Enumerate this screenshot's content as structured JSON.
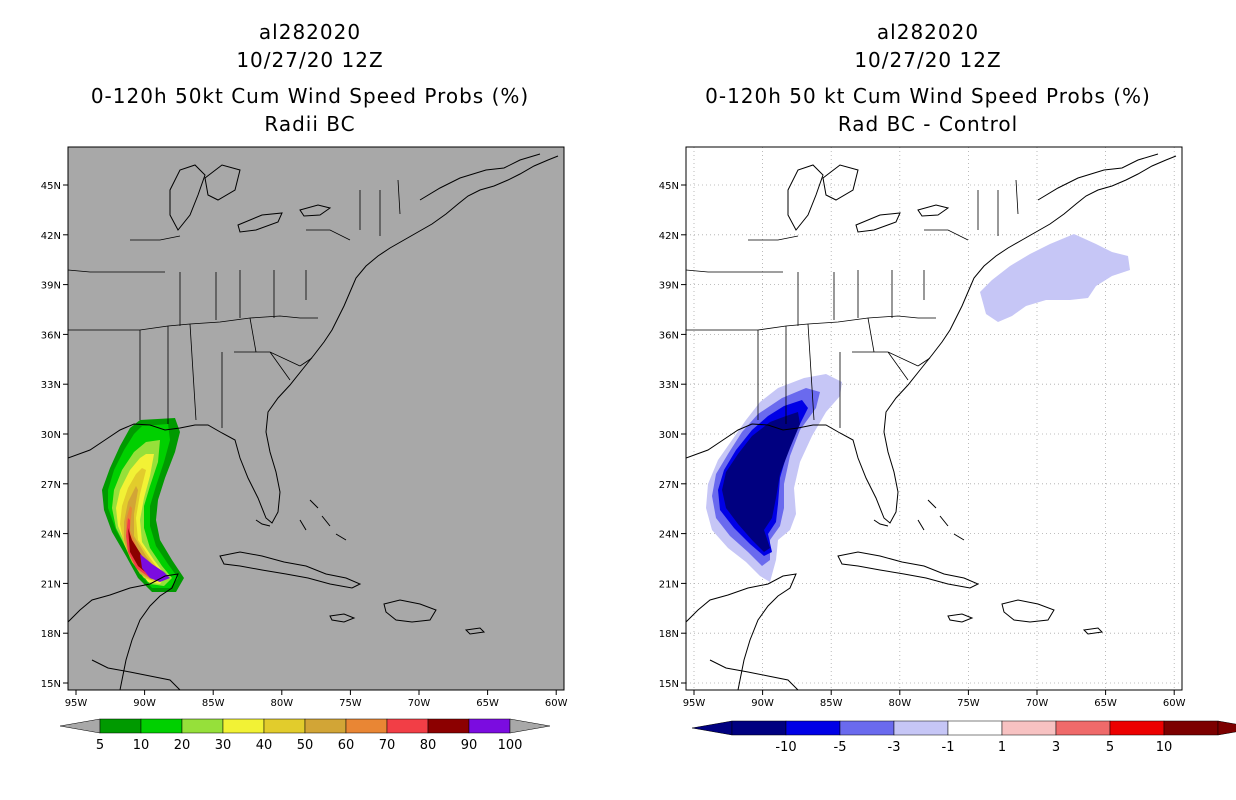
{
  "left_panel": {
    "storm_id": "al282020",
    "datetime": "10/27/20 12Z",
    "title_line1": "0-120h 50kt Cum Wind Speed Probs (%)",
    "title_line2": "Radii BC",
    "background_color": "#a8a8a8",
    "legend": {
      "colors": [
        "#009a00",
        "#00d000",
        "#96e03a",
        "#f2f235",
        "#e2cc2c",
        "#d2a536",
        "#e98634",
        "#f23e46",
        "#8c0000",
        "#7b0ce0"
      ],
      "labels": [
        "5",
        "10",
        "20",
        "30",
        "40",
        "50",
        "60",
        "70",
        "80",
        "90",
        "100"
      ]
    }
  },
  "right_panel": {
    "storm_id": "al282020",
    "datetime": "10/27/20 12Z",
    "title_line1": "0-120h 50 kt Cum Wind Speed Probs (%)",
    "title_line2": "Rad BC - Control",
    "background_color": "#ffffff",
    "legend": {
      "colors": [
        "#000080",
        "#0000e6",
        "#6a6aee",
        "#c6c6f6",
        "#ffffff",
        "#f7c2c2",
        "#ef6a6a",
        "#ec0000",
        "#7c0000"
      ],
      "labels": [
        "-10",
        "-5",
        "-3",
        "-1",
        "1",
        "3",
        "5",
        "10"
      ]
    }
  },
  "map_axes": {
    "lat_labels": [
      "15N",
      "18N",
      "21N",
      "24N",
      "27N",
      "30N",
      "33N",
      "36N",
      "39N",
      "42N",
      "45N"
    ],
    "lon_labels": [
      "95W",
      "90W",
      "85W",
      "80W",
      "75W",
      "70W",
      "65W",
      "60W"
    ]
  }
}
